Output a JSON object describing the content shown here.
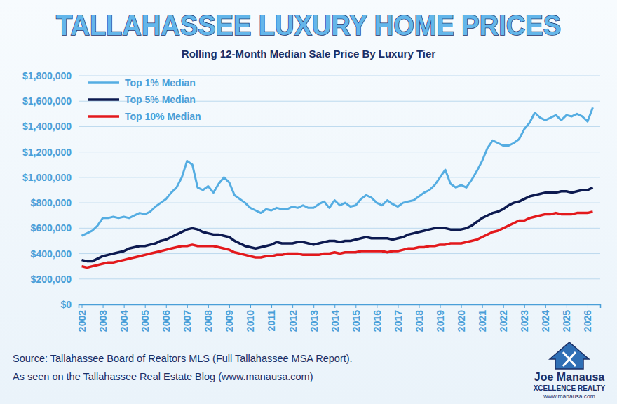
{
  "chart_data": {
    "type": "line",
    "title": "TALLAHASSEE LUXURY HOME PRICES",
    "subtitle": "Rolling 12-Month Median Sale Price By Luxury Tier",
    "source": [
      "Source: Tallahassee Board of Realtors MLS (Full Tallahassee MSA Report).",
      "As seen on the Tallahassee Real Estate Blog (www.manausa.com)"
    ],
    "logo": [
      "Joe Manausa",
      "XCELLENCE REALTY",
      "www.manausa.com"
    ],
    "x": [
      2002,
      2002.25,
      2002.5,
      2002.75,
      2003,
      2003.25,
      2003.5,
      2003.75,
      2004,
      2004.25,
      2004.5,
      2004.75,
      2005,
      2005.25,
      2005.5,
      2005.75,
      2006,
      2006.25,
      2006.5,
      2006.75,
      2007,
      2007.25,
      2007.5,
      2007.75,
      2008,
      2008.25,
      2008.5,
      2008.75,
      2009,
      2009.25,
      2009.5,
      2009.75,
      2010,
      2010.25,
      2010.5,
      2010.75,
      2011,
      2011.25,
      2011.5,
      2011.75,
      2012,
      2012.25,
      2012.5,
      2012.75,
      2013,
      2013.25,
      2013.5,
      2013.75,
      2014,
      2014.25,
      2014.5,
      2014.75,
      2015,
      2015.25,
      2015.5,
      2015.75,
      2016,
      2016.25,
      2016.5,
      2016.75,
      2017,
      2017.25,
      2017.5,
      2017.75,
      2018,
      2018.25,
      2018.5,
      2018.75,
      2019,
      2019.25,
      2019.5,
      2019.75,
      2020,
      2020.25,
      2020.5,
      2020.75,
      2021,
      2021.25,
      2021.5,
      2021.75,
      2022,
      2022.25,
      2022.5,
      2022.75,
      2023,
      2023.25,
      2023.5,
      2023.75,
      2024,
      2024.25,
      2024.5,
      2024.75,
      2025,
      2025.25,
      2025.5,
      2025.75,
      2026,
      2026.25
    ],
    "series": [
      {
        "name": "Top 1% Median",
        "color": "#55ade2",
        "values": [
          540000,
          560000,
          580000,
          620000,
          680000,
          680000,
          690000,
          680000,
          690000,
          680000,
          700000,
          720000,
          710000,
          730000,
          770000,
          800000,
          830000,
          880000,
          920000,
          1000000,
          1130000,
          1100000,
          920000,
          900000,
          930000,
          880000,
          950000,
          1000000,
          960000,
          860000,
          830000,
          800000,
          760000,
          740000,
          720000,
          750000,
          740000,
          760000,
          750000,
          750000,
          770000,
          760000,
          780000,
          760000,
          760000,
          790000,
          810000,
          760000,
          820000,
          780000,
          800000,
          770000,
          780000,
          830000,
          860000,
          840000,
          800000,
          780000,
          820000,
          790000,
          770000,
          800000,
          810000,
          820000,
          850000,
          880000,
          900000,
          940000,
          1000000,
          1060000,
          950000,
          920000,
          940000,
          920000,
          980000,
          1050000,
          1130000,
          1230000,
          1290000,
          1270000,
          1250000,
          1250000,
          1270000,
          1300000,
          1380000,
          1430000,
          1510000,
          1470000,
          1450000,
          1470000,
          1490000,
          1450000,
          1490000,
          1480000,
          1500000,
          1480000,
          1440000,
          1550000
        ]
      },
      {
        "name": "Top 5% Median",
        "color": "#0d1a50",
        "values": [
          350000,
          340000,
          340000,
          360000,
          380000,
          390000,
          400000,
          410000,
          420000,
          440000,
          450000,
          460000,
          460000,
          470000,
          480000,
          500000,
          510000,
          530000,
          550000,
          570000,
          590000,
          600000,
          590000,
          570000,
          560000,
          550000,
          550000,
          540000,
          530000,
          500000,
          480000,
          460000,
          450000,
          440000,
          450000,
          460000,
          470000,
          490000,
          480000,
          480000,
          480000,
          490000,
          490000,
          480000,
          470000,
          480000,
          490000,
          500000,
          500000,
          490000,
          500000,
          500000,
          510000,
          520000,
          530000,
          520000,
          520000,
          520000,
          520000,
          510000,
          520000,
          530000,
          550000,
          560000,
          570000,
          580000,
          590000,
          600000,
          600000,
          600000,
          590000,
          590000,
          590000,
          600000,
          620000,
          650000,
          680000,
          700000,
          720000,
          730000,
          750000,
          780000,
          800000,
          810000,
          830000,
          850000,
          860000,
          870000,
          880000,
          880000,
          880000,
          890000,
          890000,
          880000,
          890000,
          900000,
          900000,
          920000
        ]
      },
      {
        "name": "Top 10% Median",
        "color": "#e3191c",
        "values": [
          300000,
          290000,
          300000,
          310000,
          320000,
          330000,
          330000,
          340000,
          350000,
          360000,
          370000,
          380000,
          390000,
          400000,
          410000,
          420000,
          430000,
          440000,
          450000,
          460000,
          460000,
          470000,
          460000,
          460000,
          460000,
          460000,
          450000,
          440000,
          430000,
          410000,
          400000,
          390000,
          380000,
          370000,
          370000,
          380000,
          380000,
          390000,
          390000,
          400000,
          400000,
          400000,
          390000,
          390000,
          390000,
          390000,
          400000,
          400000,
          410000,
          400000,
          410000,
          410000,
          410000,
          420000,
          420000,
          420000,
          420000,
          420000,
          410000,
          420000,
          420000,
          430000,
          440000,
          440000,
          450000,
          450000,
          460000,
          460000,
          470000,
          470000,
          480000,
          480000,
          480000,
          490000,
          500000,
          510000,
          530000,
          550000,
          570000,
          580000,
          600000,
          620000,
          640000,
          660000,
          660000,
          680000,
          690000,
          700000,
          710000,
          710000,
          720000,
          710000,
          710000,
          710000,
          720000,
          720000,
          720000,
          730000
        ]
      }
    ],
    "xlim": [
      2001.85,
      2026.6
    ],
    "xticks": [
      2002,
      2003,
      2004,
      2005,
      2006,
      2007,
      2008,
      2009,
      2010,
      2011,
      2012,
      2013,
      2014,
      2015,
      2016,
      2017,
      2018,
      2019,
      2020,
      2021,
      2022,
      2023,
      2024,
      2025,
      2026
    ],
    "ylim": [
      0,
      1800000
    ],
    "yticks": [
      {
        "value": 0,
        "label": "$0"
      },
      {
        "value": 200000,
        "label": "$200,000"
      },
      {
        "value": 400000,
        "label": "$400,000"
      },
      {
        "value": 600000,
        "label": "$600,000"
      },
      {
        "value": 800000,
        "label": "$800,000"
      },
      {
        "value": 1000000,
        "label": "$1,000,000"
      },
      {
        "value": 1200000,
        "label": "$1,200,000"
      },
      {
        "value": 1400000,
        "label": "$1,400,000"
      },
      {
        "value": 1600000,
        "label": "$1,600,000"
      },
      {
        "value": 1800000,
        "label": "$1,800,000"
      }
    ],
    "grid": true,
    "legend": "upper left"
  }
}
